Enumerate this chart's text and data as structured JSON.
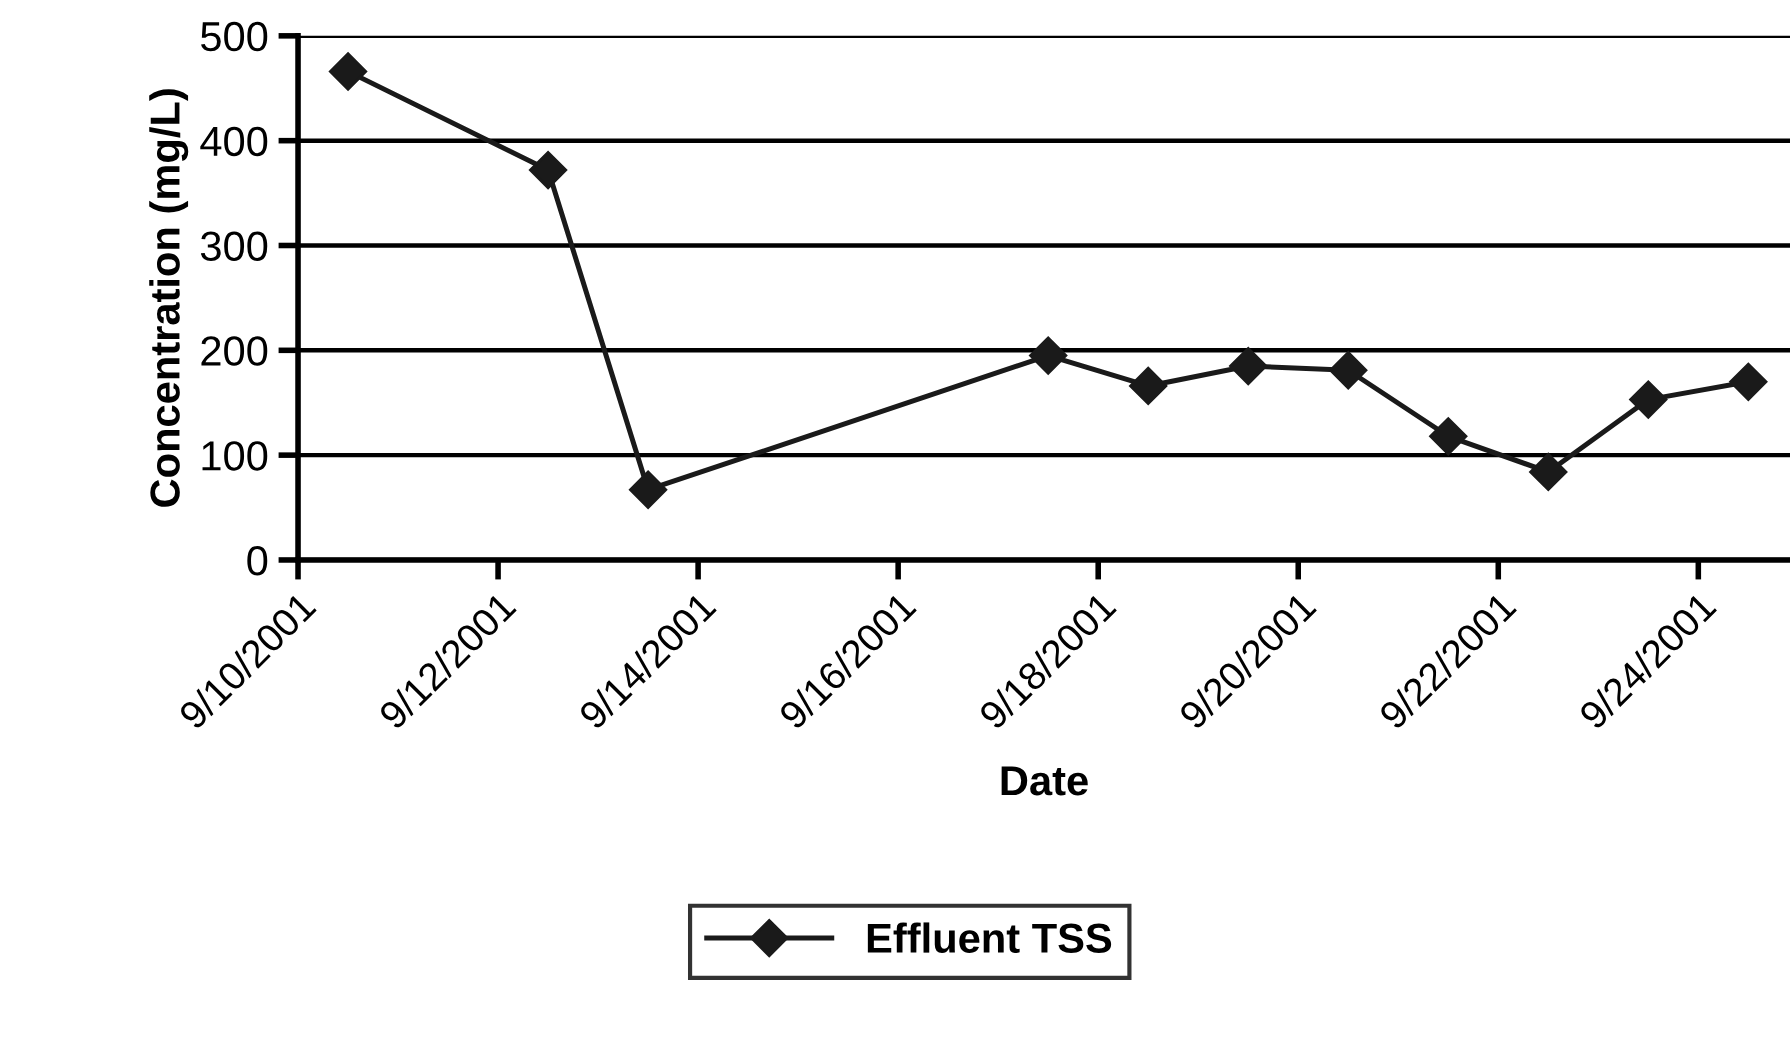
{
  "chart_data": {
    "type": "line",
    "xlabel": "Date",
    "ylabel": "Concentration (mg/L)",
    "x": [
      "2001-09-10T12:00",
      "2001-09-12T12:00",
      "2001-09-13T12:00",
      "2001-09-17T12:00",
      "2001-09-18T12:00",
      "2001-09-19T12:00",
      "2001-09-20T12:00",
      "2001-09-21T12:00",
      "2001-09-22T12:00",
      "2001-09-23T12:00",
      "2001-09-24T12:00"
    ],
    "series": [
      {
        "name": "Effluent TSS",
        "color": "#1a1a1a",
        "values": [
          466,
          372,
          67,
          195,
          166,
          185,
          181,
          118,
          84,
          153,
          170
        ]
      }
    ],
    "xlim": [
      "2001-09-10",
      "2001-09-24T22:00"
    ],
    "xticks": [
      {
        "value": "2001-09-10",
        "label": "9/10/2001"
      },
      {
        "value": "2001-09-12",
        "label": "9/12/2001"
      },
      {
        "value": "2001-09-14",
        "label": "9/14/2001"
      },
      {
        "value": "2001-09-16",
        "label": "9/16/2001"
      },
      {
        "value": "2001-09-18",
        "label": "9/18/2001"
      },
      {
        "value": "2001-09-20",
        "label": "9/20/2001"
      },
      {
        "value": "2001-09-22",
        "label": "9/22/2001"
      },
      {
        "value": "2001-09-24",
        "label": "9/24/2001"
      }
    ],
    "ylim": [
      0,
      500
    ],
    "yticks": [
      0,
      100,
      200,
      300,
      400,
      500
    ],
    "grid": "y",
    "legend": "bottom",
    "marker": "diamond",
    "line_style": "solid"
  }
}
